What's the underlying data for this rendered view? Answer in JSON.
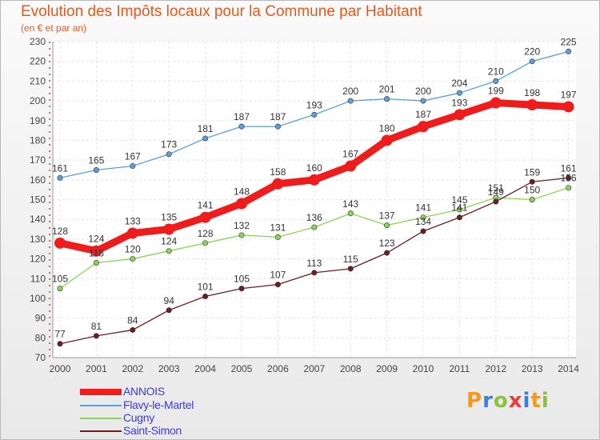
{
  "header": {
    "title": "Evolution des Impôts locaux pour la Commune par Habitant",
    "subtitle": "(en € et par an)"
  },
  "logo": {
    "letters": [
      "P",
      "r",
      "o",
      "x",
      "i",
      "t",
      "i"
    ],
    "colors": [
      "#f39a1c",
      "#3d7fd1",
      "#8dc03f",
      "#e63c3c",
      "#3d7fd1",
      "#f39a1c",
      "#8dc03f"
    ]
  },
  "chart_data": {
    "type": "line",
    "title": "Evolution des Impôts locaux pour la Commune par Habitant",
    "subtitle": "(en € et par an)",
    "xlabel": "",
    "ylabel": "",
    "categories": [
      "2000",
      "2001",
      "2002",
      "2003",
      "2004",
      "2005",
      "2006",
      "2007",
      "2008",
      "2009",
      "2010",
      "2011",
      "2012",
      "2013",
      "2014"
    ],
    "ylim": [
      70,
      230
    ],
    "yticks": [
      70,
      80,
      90,
      100,
      110,
      120,
      130,
      140,
      150,
      160,
      170,
      180,
      190,
      200,
      210,
      220,
      230
    ],
    "grid": true,
    "legend_position": "bottom-left",
    "series": [
      {
        "name": "ANNOIS",
        "color": "#ee1c1c",
        "values": [
          128,
          124,
          133,
          135,
          141,
          148,
          158,
          160,
          167,
          180,
          187,
          193,
          199,
          198,
          197
        ]
      },
      {
        "name": "Flavy-le-Martel",
        "color": "#5d9fd6",
        "values": [
          161,
          165,
          167,
          173,
          181,
          187,
          187,
          193,
          200,
          201,
          200,
          204,
          210,
          220,
          225
        ]
      },
      {
        "name": "Cugny",
        "color": "#8fd15a",
        "values": [
          105,
          118,
          120,
          124,
          128,
          132,
          131,
          136,
          143,
          137,
          141,
          145,
          151,
          150,
          156
        ]
      },
      {
        "name": "Saint-Simon",
        "color": "#6b1f24",
        "values": [
          77,
          81,
          84,
          94,
          101,
          105,
          107,
          113,
          115,
          123,
          134,
          141,
          149,
          159,
          161
        ]
      }
    ]
  }
}
